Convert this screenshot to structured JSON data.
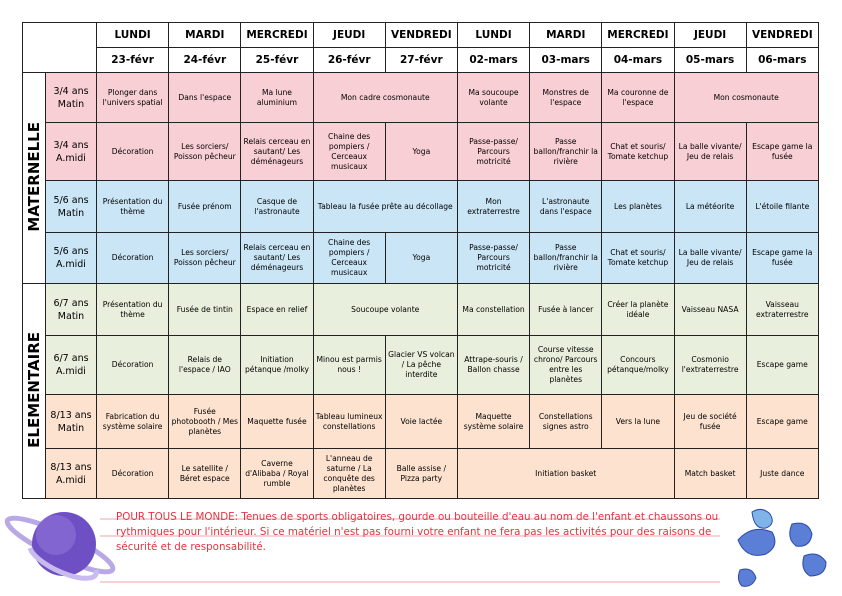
{
  "header": {
    "days": [
      {
        "day": "LUNDI",
        "date": "23-févr"
      },
      {
        "day": "MARDI",
        "date": "24-févr"
      },
      {
        "day": "MERCREDI",
        "date": "25-févr"
      },
      {
        "day": "JEUDI",
        "date": "26-févr"
      },
      {
        "day": "VENDREDI",
        "date": "27-févr"
      },
      {
        "day": "LUNDI",
        "date": "02-mars"
      },
      {
        "day": "MARDI",
        "date": "03-mars"
      },
      {
        "day": "MERCREDI",
        "date": "04-mars"
      },
      {
        "day": "JEUDI",
        "date": "05-mars"
      },
      {
        "day": "VENDREDI",
        "date": "06-mars"
      }
    ]
  },
  "groups": [
    {
      "name": "MATERNELLE",
      "rows": [
        {
          "age": "3/4 ans",
          "period": "Matin",
          "color": "#f8cfd5",
          "cells": [
            "Plonger dans l'univers spatial",
            "Dans l'espace",
            "Ma lune aluminium",
            "Mon cadre cosmonaute",
            null,
            "Ma soucoupe volante",
            "Monstres de l'espace",
            "Ma couronne de l'espace",
            "Mon cosmonaute",
            null
          ]
        },
        {
          "age": "3/4 ans",
          "period": "A.midi",
          "color": "#f8cfd5",
          "cells": [
            "Décoration",
            "Les sorciers/ Poisson pêcheur",
            "Relais cerceau en sautant/ Les déménageurs",
            "Chaine des pompiers / Cerceaux musicaux",
            "Yoga",
            "Passe-passe/ Parcours motricité",
            "Passe ballon/franchir la rivière",
            "Chat et souris/ Tomate ketchup",
            "La balle vivante/ Jeu de relais",
            "Escape game la fusée"
          ]
        },
        {
          "age": "5/6 ans",
          "period": "Matin",
          "color": "#c9e5f6",
          "cells": [
            "Présentation du thème",
            "Fusée prénom",
            "Casque de l'astronaute",
            "Tableau la fusée prête au décollage",
            null,
            "Mon extraterrestre",
            "L'astronaute dans l'espace",
            "Les planètes",
            "La météorite",
            "L'étoile filante"
          ]
        },
        {
          "age": "5/6 ans",
          "period": "A.midi",
          "color": "#c9e5f6",
          "cells": [
            "Décoration",
            "Les sorciers/ Poisson pêcheur",
            "Relais cerceau en sautant/ Les déménageurs",
            "Chaine des pompiers / Cerceaux musicaux",
            "Yoga",
            "Passe-passe/ Parcours motricité",
            "Passe ballon/franchir la rivière",
            "Chat et souris/ Tomate ketchup",
            "La balle vivante/ Jeu de relais",
            "Escape game la fusée"
          ]
        }
      ]
    },
    {
      "name": "ELEMENTAIRE",
      "rows": [
        {
          "age": "6/7 ans",
          "period": "Matin",
          "color": "#e9efdd",
          "cells": [
            "Présentation du thème",
            "Fusée de tintin",
            "Espace en relief",
            "Soucoupe volante",
            null,
            "Ma constellation",
            "Fusée à lancer",
            "Créer la planète idéale",
            "Vaisseau NASA",
            "Vaisseau extraterrestre"
          ]
        },
        {
          "age": "6/7 ans",
          "period": "A.midi",
          "color": "#e9efdd",
          "cells": [
            "Décoration",
            "Relais de l'espace / IAO",
            "Initiation pétanque /molky",
            "Minou est parmis nous !",
            "Glacier VS volcan / La pêche interdite",
            "Attrape-souris / Ballon chasse",
            "Course vitesse chrono/ Parcours entre les planètes",
            "Concours pétanque/molky",
            "Cosmonio l'extraterrestre",
            "Escape game"
          ]
        },
        {
          "age": "8/13 ans",
          "period": "Matin",
          "color": "#fce2cf",
          "cells": [
            "Fabrication du système solaire",
            "Fusée photobooth / Mes planètes",
            "Maquette fusée",
            "Tableau lumineux constellations",
            "Voie lactée",
            "Maquette système solaire",
            "Constellations signes astro",
            "Vers la lune",
            "Jeu de société fusée",
            "Escape game"
          ]
        },
        {
          "age": "8/13 ans",
          "period": "A.midi",
          "color": "#fce2cf",
          "cells": [
            "Décoration",
            "Le satellite / Béret espace",
            "Caverne d'Alibaba / Royal rumble",
            "L'anneau de saturne / La conquête des planètes",
            "Balle assise / Pizza party",
            "Initiation basket",
            null,
            null,
            "Match basket",
            "Juste dance"
          ]
        }
      ]
    }
  ],
  "note": {
    "text": "POUR TOUS LE MONDE: Tenues de sports obligatoires, gourde ou bouteille d'eau au nom de l'enfant et chaussons ou rythmiques pour l'intérieur. Si ce matériel n'est pas fourni votre enfant ne fera pas les activités pour des raisons de sécurité et de responsabilité."
  }
}
